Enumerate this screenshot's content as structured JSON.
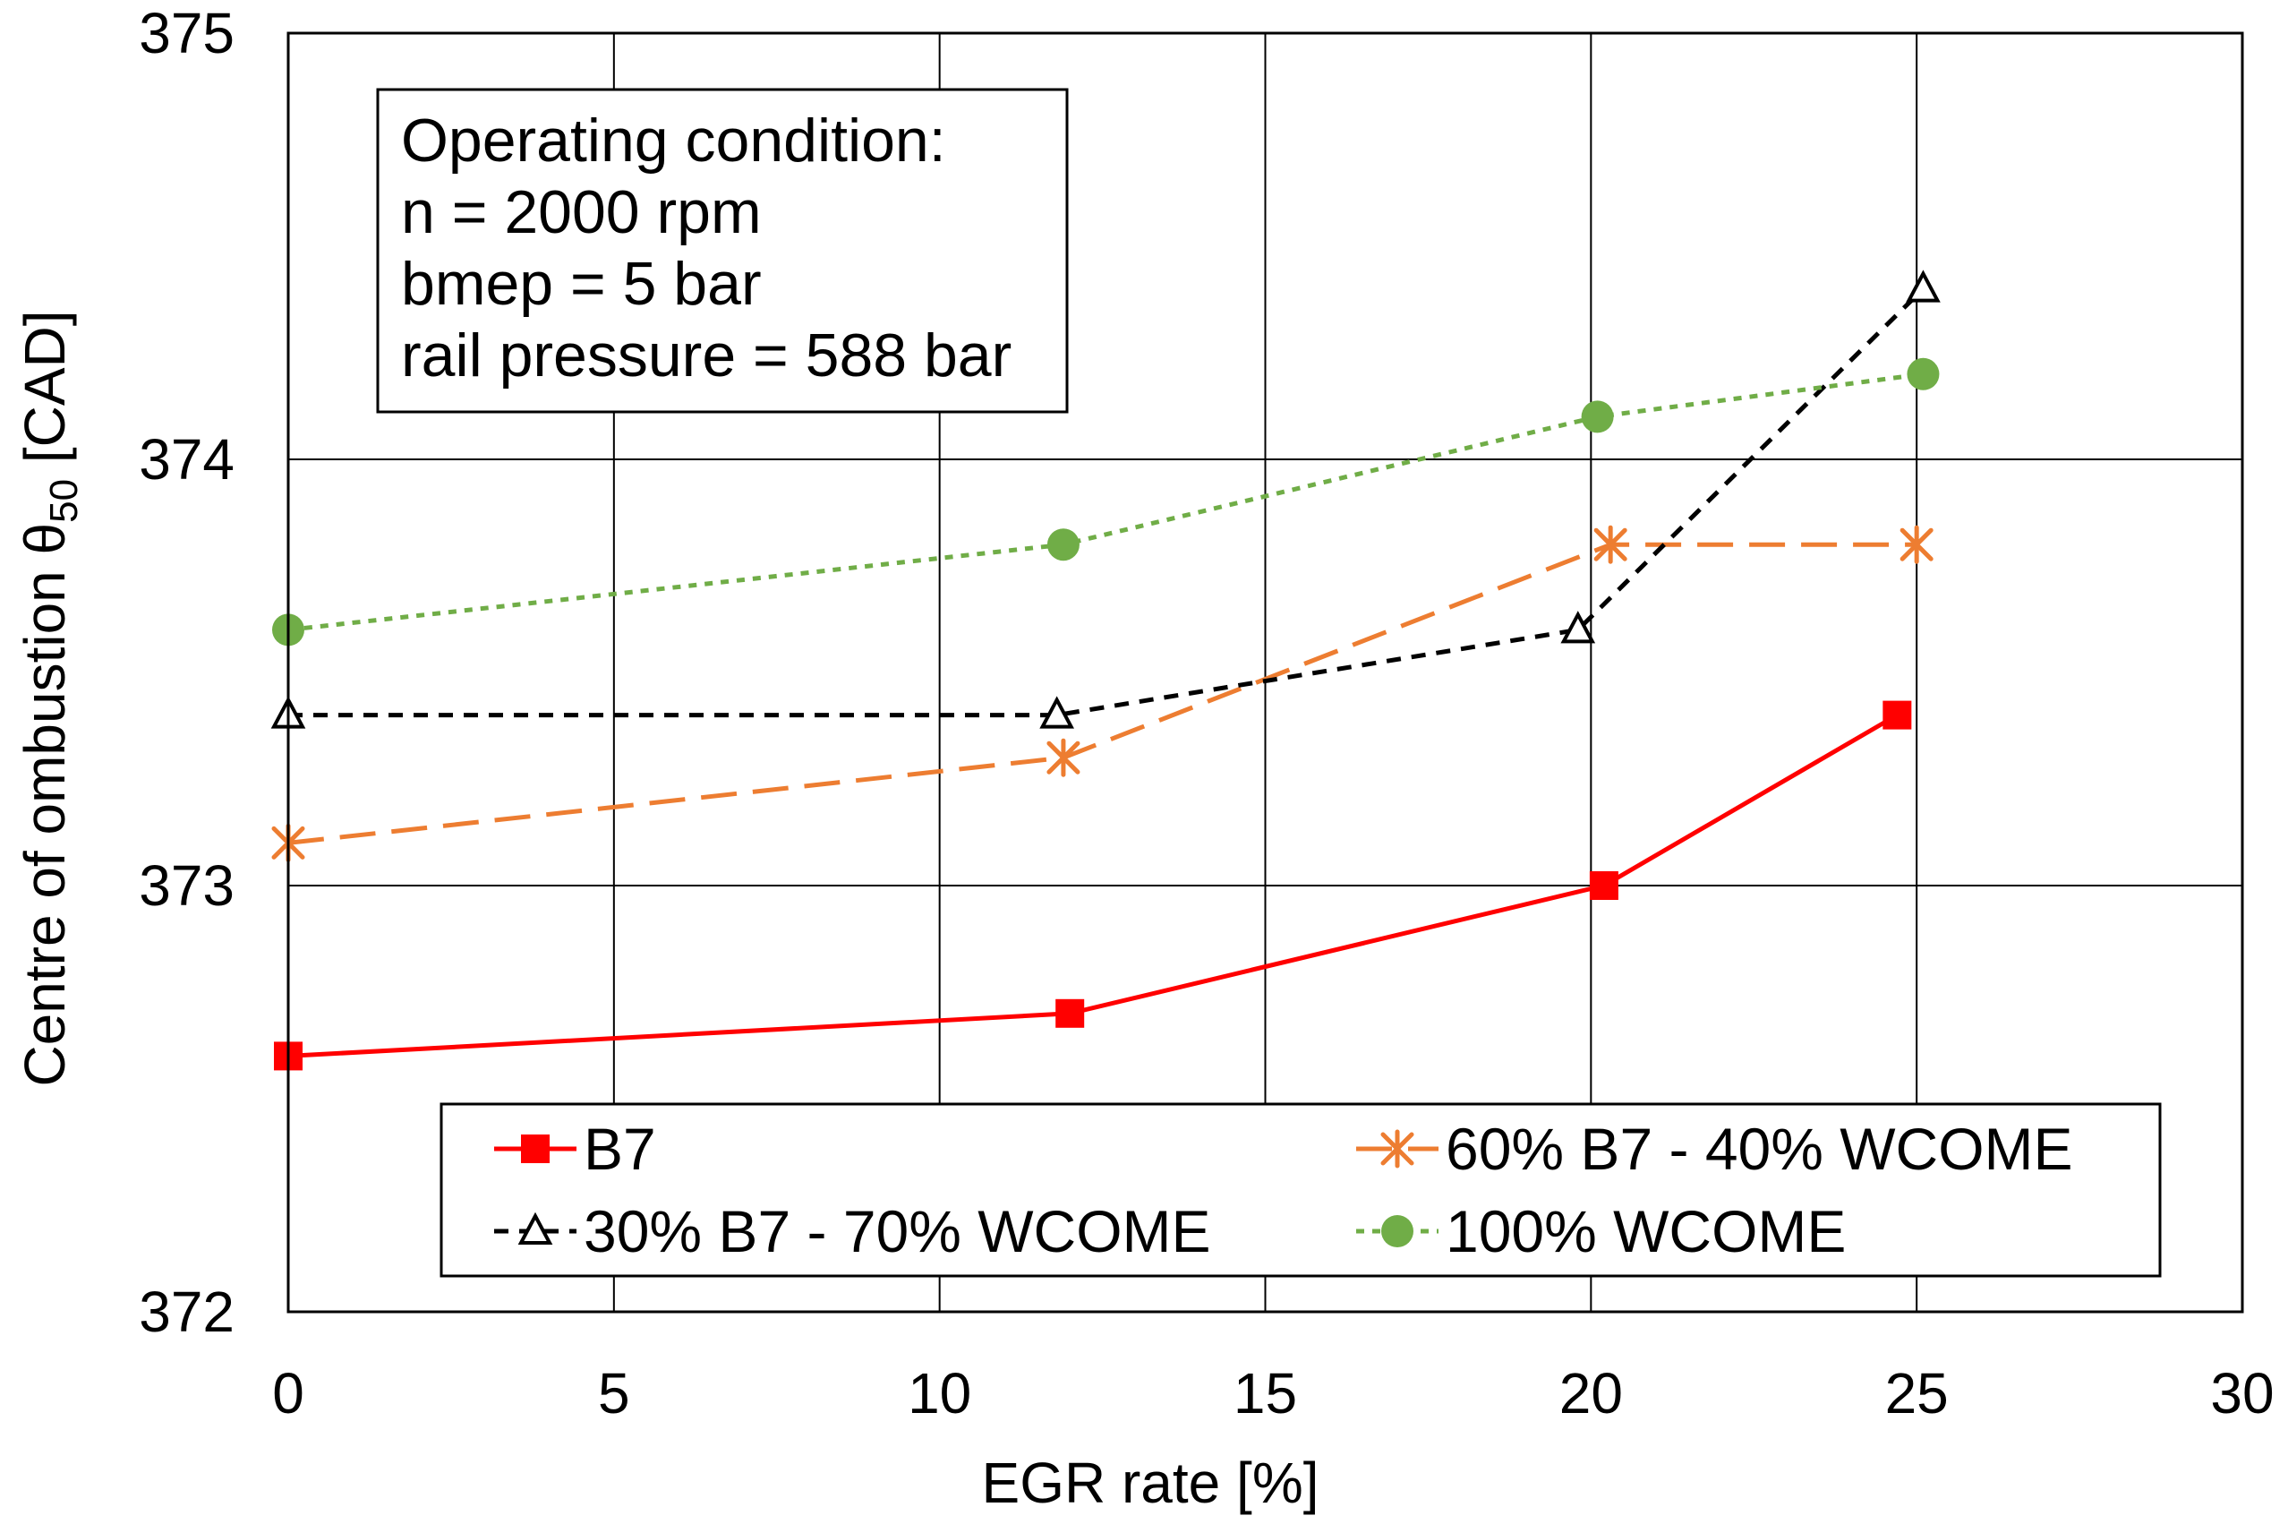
{
  "chart_data": {
    "type": "line",
    "title": "",
    "xlabel": "EGR rate [%]",
    "ylabel_main": "Centre of ombustion θ",
    "ylabel_sub": "50",
    "ylabel_tail": " [CAD]",
    "xlim": [
      0,
      30
    ],
    "ylim": [
      372,
      375
    ],
    "x_ticks": [
      0,
      5,
      10,
      15,
      20,
      25,
      30
    ],
    "y_ticks": [
      372,
      373,
      374,
      375
    ],
    "grid": true,
    "annotation": {
      "lines": [
        "Operating condition:",
        "n = 2000 rpm",
        "bmep = 5 bar",
        "rail pressure = 588 bar"
      ]
    },
    "legend_position": "bottom",
    "series": [
      {
        "name": "B7",
        "color": "#ff0000",
        "dash": "solid",
        "marker": "square",
        "x": [
          0,
          12.0,
          20.2,
          24.7
        ],
        "y": [
          372.6,
          372.7,
          373.0,
          373.4
        ]
      },
      {
        "name": "60% B7 - 40% WCOME",
        "color": "#ed7d31",
        "dash": "longdash",
        "marker": "asterisk",
        "x": [
          0,
          11.9,
          20.3,
          25.0
        ],
        "y": [
          373.1,
          373.3,
          373.8,
          373.8
        ]
      },
      {
        "name": "30% B7 - 70% WCOME",
        "color": "#000000",
        "dash": "dash",
        "marker": "triangle",
        "x": [
          0,
          11.8,
          19.8,
          25.1
        ],
        "y": [
          373.4,
          373.4,
          373.6,
          374.4
        ]
      },
      {
        "name": "100% WCOME",
        "color": "#70ad47",
        "dash": "dot",
        "marker": "circle",
        "x": [
          0,
          11.9,
          20.1,
          25.1
        ],
        "y": [
          373.6,
          373.8,
          374.1,
          374.2
        ]
      }
    ]
  }
}
